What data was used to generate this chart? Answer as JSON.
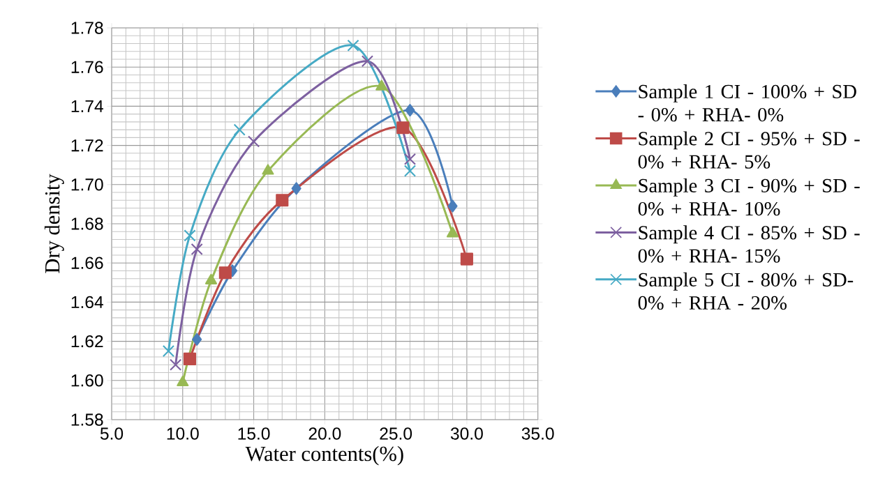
{
  "chart_data": {
    "type": "line",
    "xlabel": "Water contents(%)",
    "ylabel": "Dry density",
    "xlim": [
      5,
      35
    ],
    "ylim": [
      1.58,
      1.78
    ],
    "xticks": [
      {
        "value": 5,
        "label": "5.0"
      },
      {
        "value": 10,
        "label": "10.0"
      },
      {
        "value": 15,
        "label": "15.0"
      },
      {
        "value": 20,
        "label": "20.0"
      },
      {
        "value": 25,
        "label": "25.0"
      },
      {
        "value": 30,
        "label": "30.0"
      },
      {
        "value": 35,
        "label": "35.0"
      }
    ],
    "yticks": [
      {
        "value": 1.58,
        "label": "1.58"
      },
      {
        "value": 1.6,
        "label": "1.60"
      },
      {
        "value": 1.62,
        "label": "1.62"
      },
      {
        "value": 1.64,
        "label": "1.64"
      },
      {
        "value": 1.66,
        "label": "1.66"
      },
      {
        "value": 1.68,
        "label": "1.68"
      },
      {
        "value": 1.7,
        "label": "1.70"
      },
      {
        "value": 1.72,
        "label": "1.72"
      },
      {
        "value": 1.74,
        "label": "1.74"
      },
      {
        "value": 1.76,
        "label": "1.76"
      },
      {
        "value": 1.78,
        "label": "1.78"
      }
    ],
    "grid": true,
    "legend": "right",
    "line_style": "solid",
    "series": [
      {
        "name": "Sample 1 CI - 100% + SD - 0% + RHA- 0%",
        "color": "#4a7ebb",
        "marker": "diamond",
        "x": [
          11,
          13.5,
          18,
          26,
          29
        ],
        "values": [
          1.621,
          1.656,
          1.698,
          1.738,
          1.689
        ]
      },
      {
        "name": "Sample 2 CI - 95% + SD - 0% + RHA- 5%",
        "color": "#be4b48",
        "marker": "square",
        "x": [
          10.5,
          13,
          17,
          25.5,
          30
        ],
        "values": [
          1.611,
          1.655,
          1.692,
          1.729,
          1.662
        ]
      },
      {
        "name": "Sample 3 CI - 90% + SD - 0% + RHA- 10%",
        "color": "#98b954",
        "marker": "triangle",
        "x": [
          10,
          12,
          16,
          24,
          29
        ],
        "values": [
          1.599,
          1.651,
          1.707,
          1.75,
          1.675
        ]
      },
      {
        "name": "Sample 4 CI - 85% + SD - 0% + RHA- 15%",
        "color": "#7d60a0",
        "marker": "cross",
        "x": [
          9.5,
          11,
          15,
          23,
          26
        ],
        "values": [
          1.608,
          1.667,
          1.722,
          1.763,
          1.713
        ]
      },
      {
        "name": "Sample 5 CI - 80% + SD- 0% + RHA - 20%",
        "color": "#46aac5",
        "marker": "cross",
        "x": [
          9,
          10.5,
          14,
          22,
          26
        ],
        "values": [
          1.615,
          1.674,
          1.728,
          1.771,
          1.707
        ]
      }
    ]
  }
}
